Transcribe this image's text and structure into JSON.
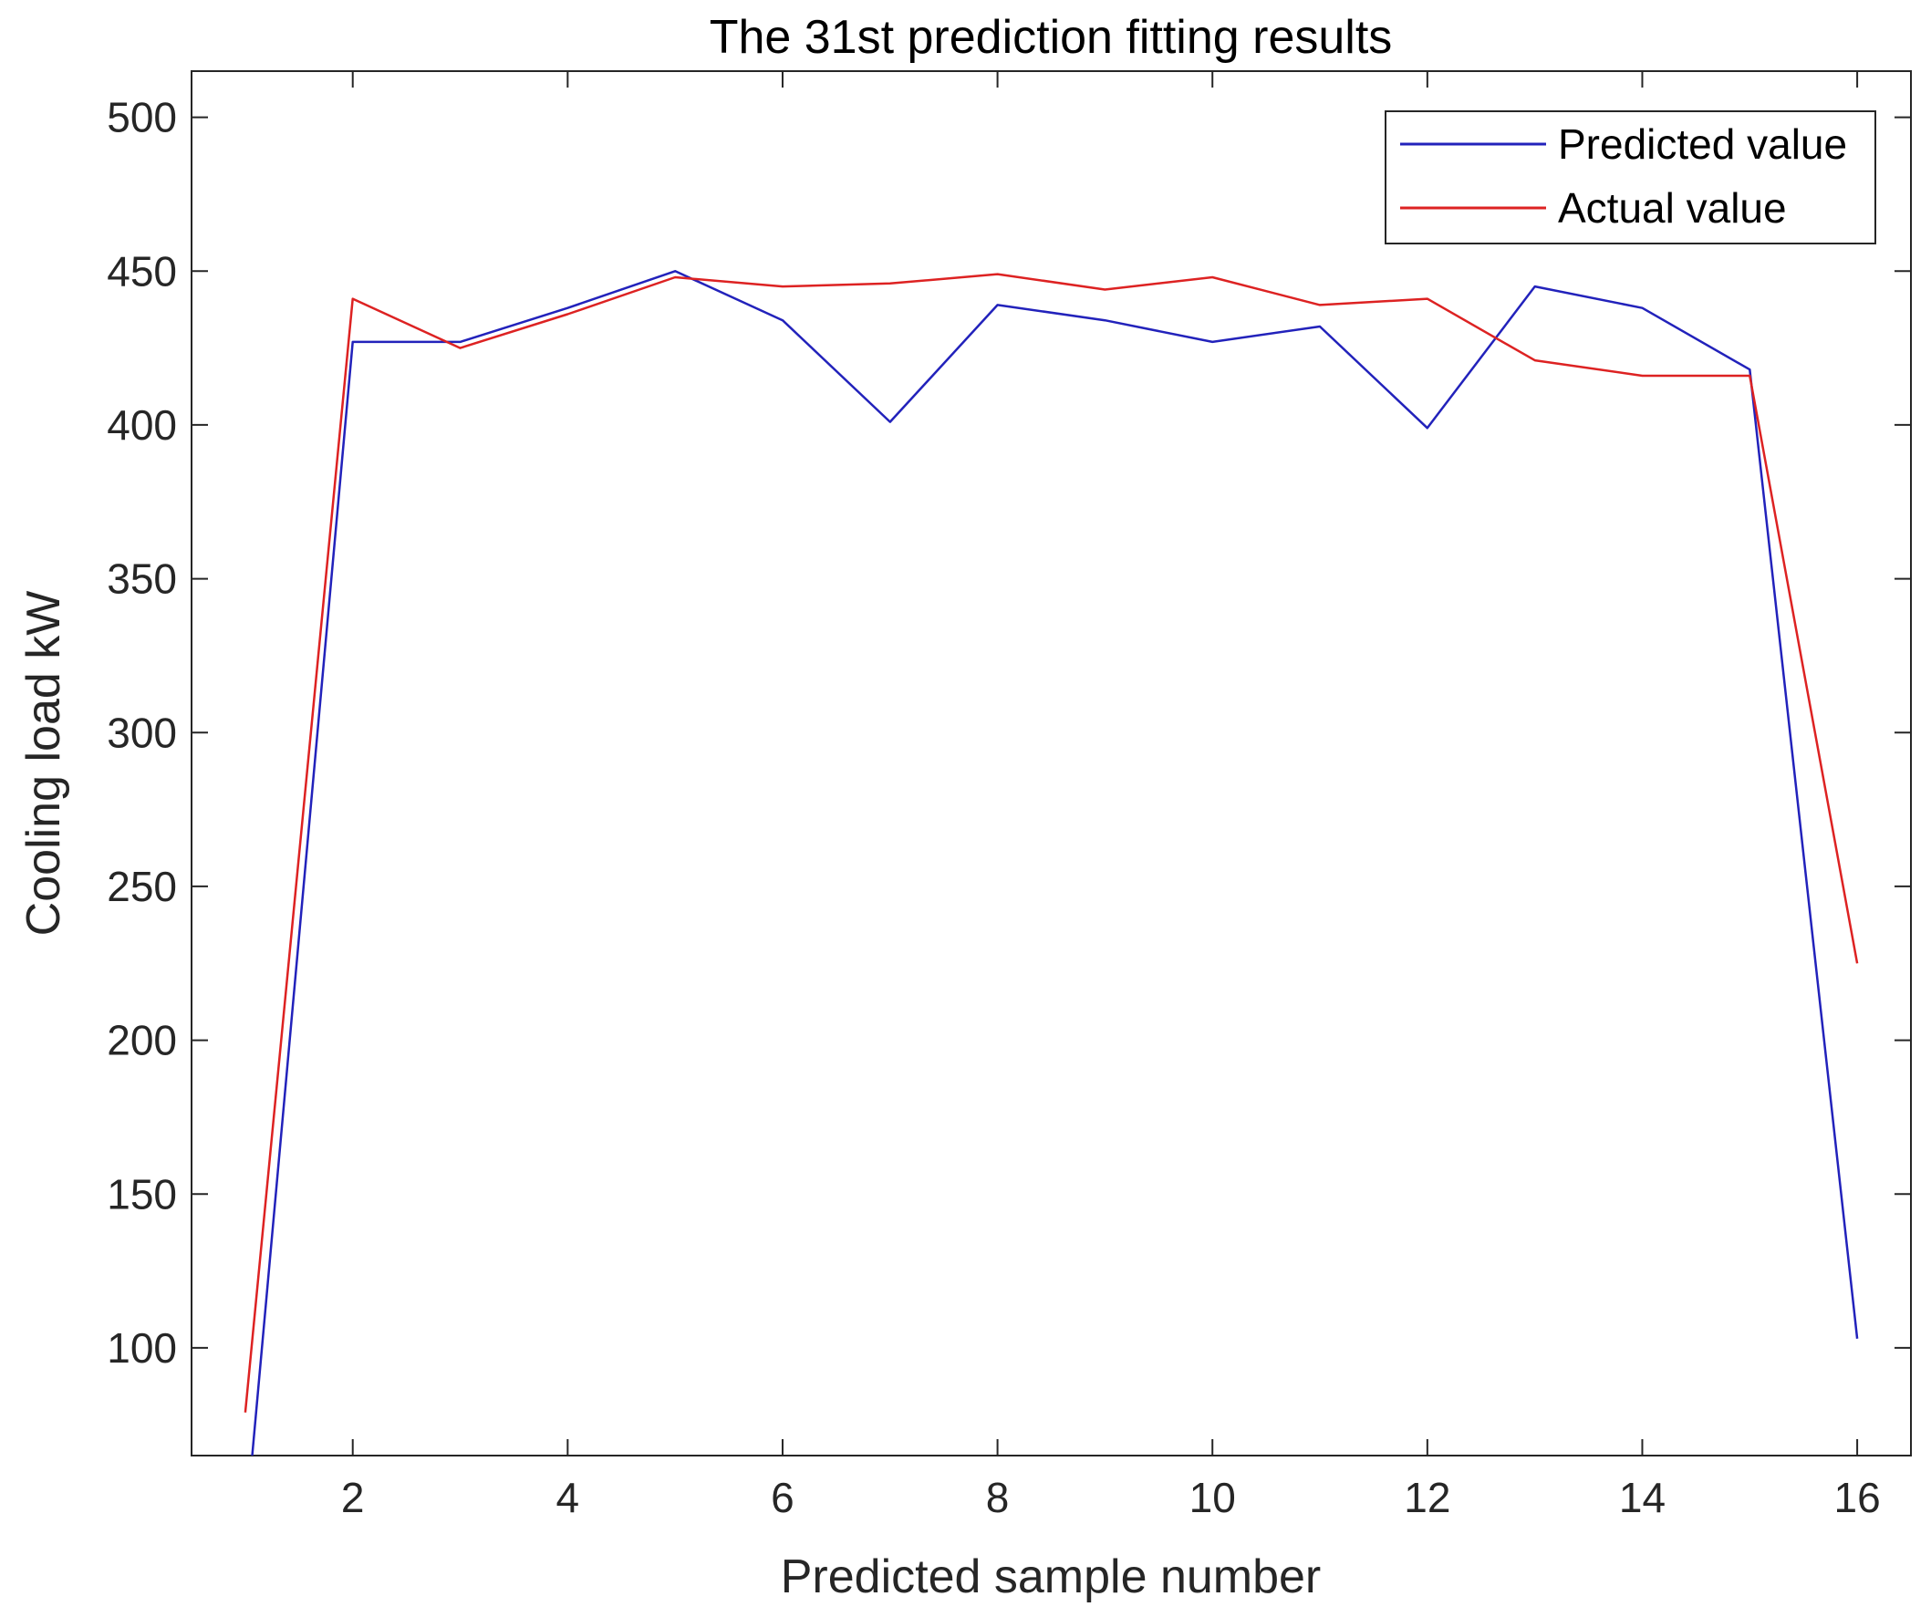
{
  "chart_data": {
    "type": "line",
    "title": "The 31st prediction fitting results",
    "xlabel": "Predicted sample number",
    "ylabel": "Cooling load kW",
    "x": [
      1,
      2,
      3,
      4,
      5,
      6,
      7,
      8,
      9,
      10,
      11,
      12,
      13,
      14,
      15,
      16
    ],
    "xlim": [
      0.5,
      16.5
    ],
    "ylim": [
      65,
      515
    ],
    "xticks": [
      2,
      4,
      6,
      8,
      10,
      12,
      14,
      16
    ],
    "yticks": [
      100,
      150,
      200,
      250,
      300,
      350,
      400,
      450,
      500
    ],
    "grid": false,
    "legend_position": "top-right",
    "series": [
      {
        "name": "Predicted value",
        "color": "#2222bb",
        "values": [
          40,
          427,
          427,
          438,
          450,
          434,
          401,
          439,
          434,
          427,
          432,
          399,
          445,
          438,
          418,
          103
        ]
      },
      {
        "name": "Actual value",
        "color": "#dd2222",
        "values": [
          79,
          441,
          425,
          436,
          448,
          445,
          446,
          449,
          444,
          448,
          439,
          441,
          421,
          416,
          416,
          225
        ]
      }
    ]
  }
}
